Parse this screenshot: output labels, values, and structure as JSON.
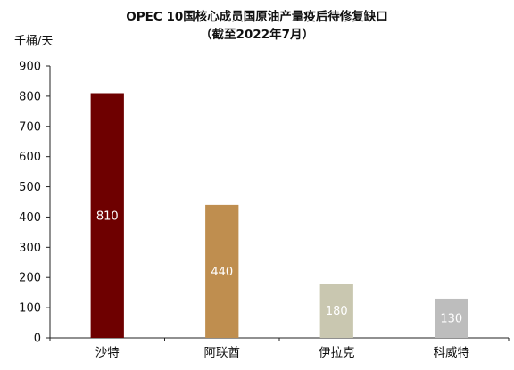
{
  "chart_data": {
    "type": "bar",
    "title": "OPEC 10国核心成员国原油产量疫后待修复缺口",
    "subtitle": "（截至2022年7月）",
    "ylabel": "千桶/天",
    "ylim": [
      0,
      900
    ],
    "yticks": [
      0,
      100,
      200,
      300,
      400,
      500,
      600,
      700,
      800,
      900
    ],
    "categories": [
      "沙特",
      "阿联酋",
      "伊拉克",
      "科威特"
    ],
    "values": [
      810,
      440,
      180,
      130
    ],
    "data_labels": [
      "810",
      "440",
      "180",
      "130"
    ],
    "colors": [
      "#6E0000",
      "#BF8E4F",
      "#C9C7B0",
      "#BDBDBD"
    ],
    "grid": false,
    "legend": false
  }
}
